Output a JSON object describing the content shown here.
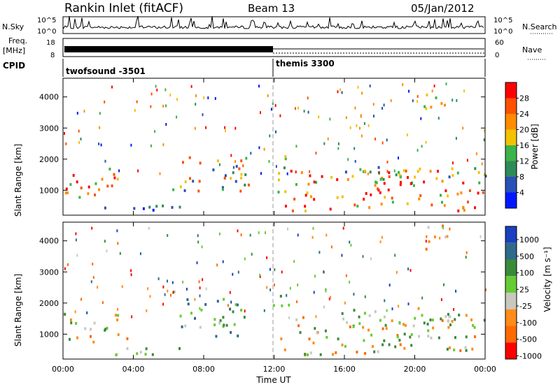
{
  "header": {
    "title": "Rankin Inlet (fitACF)",
    "beam": "Beam 13",
    "date": "05/Jan/2012"
  },
  "noise_panel": {
    "left_label": "N.Sky",
    "right_label": "N.Search",
    "ticks_left": [
      "10^5",
      "10^0"
    ],
    "ticks_right": [
      "10^5",
      "10^0"
    ]
  },
  "freq_panel": {
    "left_label_top": "Freq.",
    "left_label_unit": "[MHz]",
    "ticks_left": [
      "18",
      "8"
    ],
    "ticks_right": [
      "60",
      "0"
    ],
    "right_label": "Nave"
  },
  "cpid_panel": {
    "label": "CPID",
    "modes": [
      "twofsound -3501",
      "themis 3300"
    ]
  },
  "colors": {
    "power_scale": [
      "#0018ff",
      "#2850b8",
      "#2e8b57",
      "#3cb34a",
      "#f2c200",
      "#ff8c00",
      "#ff5000",
      "#ff0000"
    ],
    "velocity_scale": [
      "#1a3fbf",
      "#2e6b8a",
      "#3a8a3a",
      "#66cc33",
      "#c8c8c0",
      "#ff8c1a",
      "#ff6a00",
      "#ff0000"
    ]
  },
  "chart_data": [
    {
      "type": "heatmap",
      "panel": "power",
      "title": "",
      "xlabel": "Time UT",
      "ylabel": "Slant Range [km]",
      "x_ticks": [
        "00:00",
        "04:00",
        "08:00",
        "12:00",
        "16:00",
        "20:00",
        "00:00"
      ],
      "y_ticks": [
        "1000",
        "2000",
        "3000",
        "4000"
      ],
      "ylim": [
        200,
        4600
      ],
      "colorbar_label": "Power [dB]",
      "colorbar_ticks": [
        "4",
        "8",
        "12",
        "16",
        "20",
        "24",
        "28"
      ]
    },
    {
      "type": "heatmap",
      "panel": "velocity",
      "title": "",
      "xlabel": "Time UT",
      "ylabel": "Slant Range [km]",
      "x_ticks": [
        "00:00",
        "04:00",
        "08:00",
        "12:00",
        "16:00",
        "20:00",
        "00:00"
      ],
      "y_ticks": [
        "1000",
        "2000",
        "3000",
        "4000"
      ],
      "ylim": [
        200,
        4600
      ],
      "colorbar_label": "Velocity [m s⁻¹]",
      "colorbar_ticks": [
        "1000",
        "500",
        "100",
        "25",
        "-25",
        "-100",
        "-500",
        "-1000"
      ]
    }
  ]
}
